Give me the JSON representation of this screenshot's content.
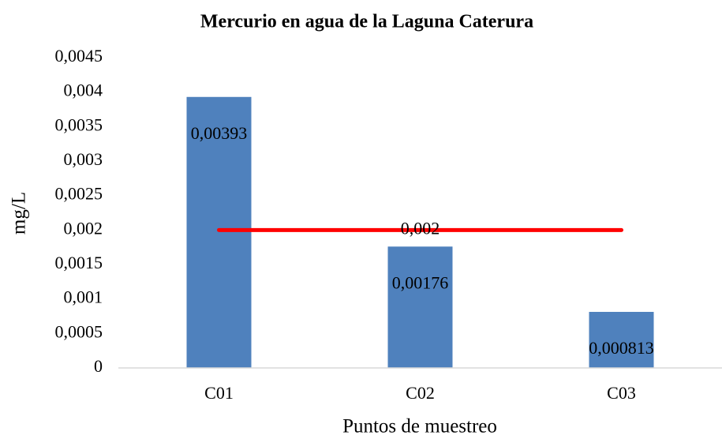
{
  "chart_data": {
    "type": "bar",
    "title": "Mercurio en agua de la Laguna Caterura",
    "x_label": "Puntos de muestreo",
    "y_label": "mg/L",
    "categories": [
      "C01",
      "C02",
      "C03"
    ],
    "series": [
      {
        "type": "bar",
        "color": "#4f81bd",
        "values": [
          0.00393,
          0.00176,
          0.000813
        ],
        "value_labels": [
          "0,00393",
          "0,00176",
          "0,000813"
        ]
      },
      {
        "type": "line",
        "color": "#ff0000",
        "values": [
          0.002,
          0.002,
          0.002
        ],
        "value_labels": [
          null,
          "0,002",
          null
        ]
      }
    ],
    "ylim": [
      0,
      0.0045
    ],
    "yticks": [
      0,
      {
        "value": 0.0005,
        "label": "0,0005"
      },
      {
        "value": 0.001,
        "label": "0,001"
      },
      {
        "value": 0.0015,
        "label": "0,0015"
      },
      {
        "value": 0.002,
        "label": "0,002"
      },
      {
        "value": 0.0025,
        "label": "0,0025"
      },
      {
        "value": 0.003,
        "label": "0,003"
      },
      {
        "value": 0.0035,
        "label": "0,0035"
      },
      {
        "value": 0.004,
        "label": "0,004"
      },
      {
        "value": 0.0045,
        "label": "0,0045"
      }
    ],
    "grid": false
  }
}
